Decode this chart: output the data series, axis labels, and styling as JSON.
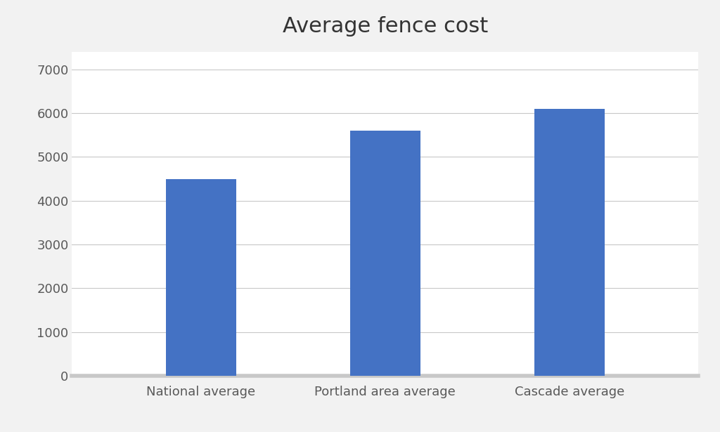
{
  "categories": [
    "National average",
    "Portland area average",
    "Cascade average"
  ],
  "values": [
    4500,
    5600,
    6100
  ],
  "bar_color": "#4472C4",
  "title": "Average fence cost",
  "title_fontsize": 22,
  "ylim": [
    0,
    7400
  ],
  "yticks": [
    0,
    1000,
    2000,
    3000,
    4000,
    5000,
    6000,
    7000
  ],
  "background_color": "#f2f2f2",
  "plot_bg_color": "#ffffff",
  "grid_color": "#c8c8c8",
  "tick_label_color": "#595959",
  "tick_fontsize": 13,
  "bar_width": 0.38,
  "title_color": "#333333"
}
